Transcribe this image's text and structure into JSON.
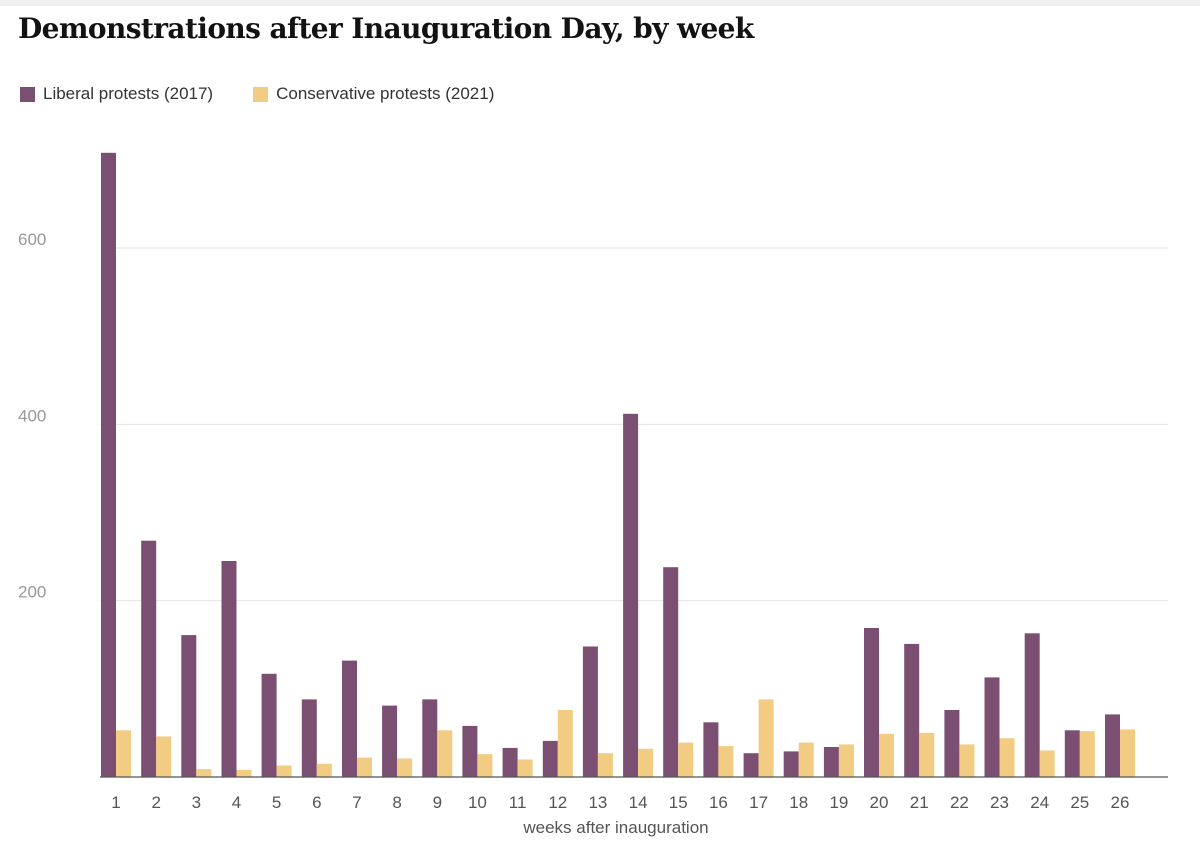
{
  "chart_data": {
    "type": "bar",
    "title": "Demonstrations after Inauguration Day, by week",
    "xlabel": "weeks after inauguration",
    "ylabel": "",
    "ylim": [
      0,
      720
    ],
    "yticks": [
      200,
      400,
      600
    ],
    "grid": true,
    "legend_position": "top-left",
    "categories": [
      "1",
      "2",
      "3",
      "4",
      "5",
      "6",
      "7",
      "8",
      "9",
      "10",
      "11",
      "12",
      "13",
      "14",
      "15",
      "16",
      "17",
      "18",
      "19",
      "20",
      "21",
      "22",
      "23",
      "24",
      "25",
      "26"
    ],
    "series": [
      {
        "name": "Liberal protests (2017)",
        "color": "#7b4f71",
        "values": [
          708,
          268,
          161,
          245,
          117,
          88,
          132,
          81,
          88,
          58,
          33,
          41,
          148,
          412,
          238,
          62,
          27,
          29,
          34,
          169,
          151,
          76,
          113,
          163,
          53,
          71
        ]
      },
      {
        "name": "Conservative protests (2021)",
        "color": "#f2cc82",
        "values": [
          53,
          46,
          9,
          8,
          13,
          15,
          22,
          21,
          53,
          26,
          20,
          76,
          27,
          32,
          39,
          35,
          88,
          39,
          37,
          49,
          50,
          37,
          44,
          30,
          52,
          54
        ]
      }
    ]
  }
}
